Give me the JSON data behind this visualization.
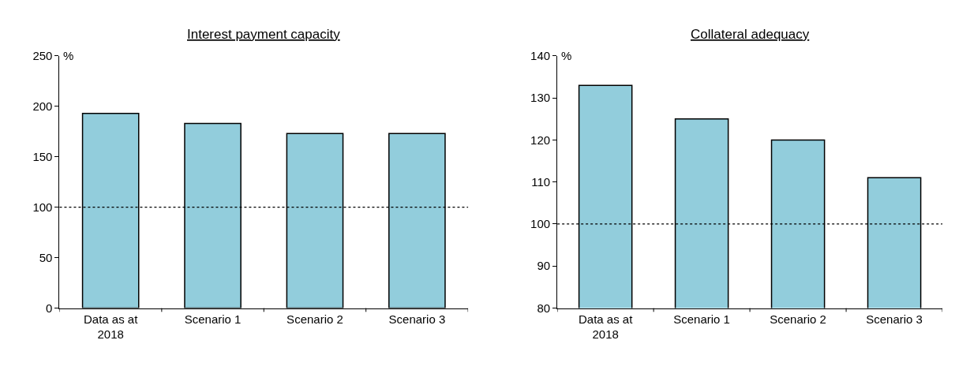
{
  "chart_data": [
    {
      "type": "bar",
      "title": "Interest payment capacity",
      "ylabel": "%",
      "categories": [
        "Data as at 2018",
        "Scenario 1",
        "Scenario 2",
        "Scenario 3"
      ],
      "values": [
        193,
        183,
        173,
        173
      ],
      "color": "#92cddc",
      "ylim": [
        0,
        250
      ],
      "yticks": [
        0,
        50,
        100,
        150,
        200,
        250
      ],
      "ref_lines": [
        {
          "axis": "y",
          "value": 100,
          "color": "#000000",
          "line_style": "dotted"
        }
      ]
    },
    {
      "type": "bar",
      "title": "Collateral adequacy",
      "ylabel": "%",
      "categories": [
        "Data as at 2018",
        "Scenario 1",
        "Scenario 2",
        "Scenario 3"
      ],
      "values": [
        133,
        125,
        120,
        111
      ],
      "color": "#92cddc",
      "ylim": [
        80,
        140
      ],
      "yticks": [
        80,
        90,
        100,
        110,
        120,
        130,
        140
      ],
      "ref_lines": [
        {
          "axis": "y",
          "value": 100,
          "color": "#000000",
          "line_style": "dotted"
        }
      ]
    }
  ]
}
